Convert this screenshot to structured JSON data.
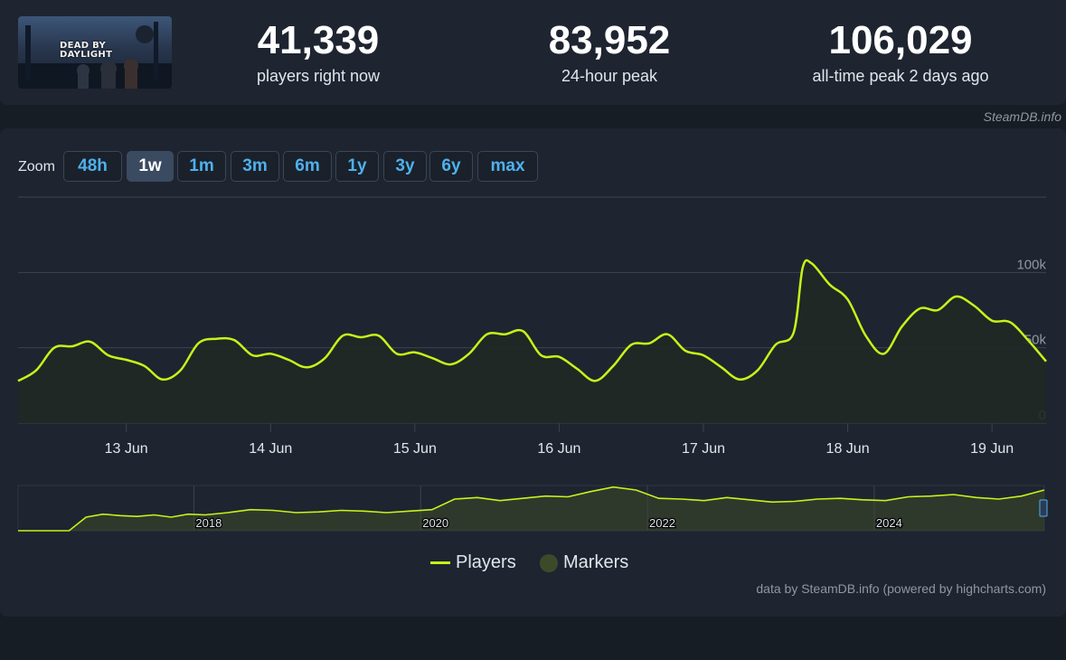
{
  "header": {
    "game_logo_text": "DEAD BY DAYLIGHT",
    "stats": [
      {
        "value": "41,339",
        "label": "players right now"
      },
      {
        "value": "83,952",
        "label": "24-hour peak"
      },
      {
        "value": "106,029",
        "label": "all-time peak 2 days ago"
      }
    ],
    "credit": "SteamDB.info"
  },
  "zoom": {
    "label": "Zoom",
    "buttons": [
      "48h",
      "1w",
      "1m",
      "3m",
      "6m",
      "1y",
      "3y",
      "6y",
      "max"
    ],
    "active": "1w"
  },
  "colors": {
    "line": "#c8f219",
    "area": "#1f2923",
    "grid": "#3a4350",
    "marker": "#3d4a2a",
    "accent": "#4fb0ee"
  },
  "chart_data": {
    "type": "area",
    "series": [
      {
        "name": "Players",
        "x": [
          "2024-06-12 06:00",
          "2024-06-12 09:00",
          "2024-06-12 12:00",
          "2024-06-12 15:00",
          "2024-06-12 18:00",
          "2024-06-12 21:00",
          "2024-06-13 00:00",
          "2024-06-13 03:00",
          "2024-06-13 06:00",
          "2024-06-13 09:00",
          "2024-06-13 12:00",
          "2024-06-13 15:00",
          "2024-06-13 18:00",
          "2024-06-13 21:00",
          "2024-06-14 00:00",
          "2024-06-14 03:00",
          "2024-06-14 06:00",
          "2024-06-14 09:00",
          "2024-06-14 12:00",
          "2024-06-14 15:00",
          "2024-06-14 18:00",
          "2024-06-14 21:00",
          "2024-06-15 00:00",
          "2024-06-15 03:00",
          "2024-06-15 06:00",
          "2024-06-15 09:00",
          "2024-06-15 12:00",
          "2024-06-15 15:00",
          "2024-06-15 18:00",
          "2024-06-15 21:00",
          "2024-06-16 00:00",
          "2024-06-16 03:00",
          "2024-06-16 06:00",
          "2024-06-16 09:00",
          "2024-06-16 12:00",
          "2024-06-16 15:00",
          "2024-06-16 18:00",
          "2024-06-16 21:00",
          "2024-06-17 00:00",
          "2024-06-17 03:00",
          "2024-06-17 06:00",
          "2024-06-17 09:00",
          "2024-06-17 12:00",
          "2024-06-17 15:00",
          "2024-06-17 16:30",
          "2024-06-17 18:00",
          "2024-06-17 21:00",
          "2024-06-18 00:00",
          "2024-06-18 03:00",
          "2024-06-18 06:00",
          "2024-06-18 09:00",
          "2024-06-18 12:00",
          "2024-06-18 15:00",
          "2024-06-18 18:00",
          "2024-06-18 21:00",
          "2024-06-19 00:00",
          "2024-06-19 03:00",
          "2024-06-19 06:00",
          "2024-06-19 09:00"
        ],
        "values": [
          28000,
          35000,
          50000,
          51000,
          54000,
          45000,
          42000,
          38000,
          29000,
          35000,
          53000,
          56000,
          55000,
          45000,
          46000,
          42000,
          37000,
          43000,
          58000,
          57000,
          58000,
          46000,
          47000,
          43000,
          39000,
          46000,
          59000,
          59000,
          61000,
          45000,
          44000,
          36000,
          28000,
          38000,
          52000,
          53000,
          59000,
          48000,
          45000,
          37000,
          29000,
          35000,
          52000,
          60000,
          103000,
          106000,
          92000,
          82000,
          58000,
          46000,
          64000,
          76000,
          75000,
          84000,
          78000,
          68000,
          67000,
          55000,
          41000
        ]
      }
    ],
    "x_ticks": [
      "13 Jun",
      "14 Jun",
      "15 Jun",
      "16 Jun",
      "17 Jun",
      "18 Jun",
      "19 Jun"
    ],
    "y_ticks": [
      "100k",
      "50k",
      "0"
    ],
    "ylim": [
      0,
      150000
    ],
    "grid": true,
    "legend": [
      "Players",
      "Markers"
    ],
    "legend_position": "bottom",
    "navigator": {
      "labels": [
        "2018",
        "2020",
        "2022",
        "2024"
      ],
      "x": [
        2016.45,
        2016.6,
        2016.75,
        2016.9,
        2017.05,
        2017.2,
        2017.35,
        2017.5,
        2017.65,
        2017.8,
        2017.95,
        2018.1,
        2018.3,
        2018.5,
        2018.7,
        2018.9,
        2019.1,
        2019.3,
        2019.5,
        2019.7,
        2019.9,
        2020.1,
        2020.3,
        2020.5,
        2020.7,
        2020.9,
        2021.1,
        2021.3,
        2021.5,
        2021.7,
        2021.9,
        2022.1,
        2022.3,
        2022.5,
        2022.7,
        2022.9,
        2023.1,
        2023.3,
        2023.5,
        2023.7,
        2023.9,
        2024.1,
        2024.3,
        2024.5,
        2024.7,
        2024.9,
        2025.1,
        2025.3,
        2025.5
      ],
      "values": [
        0,
        0,
        0,
        0,
        18000,
        22000,
        20000,
        19000,
        21000,
        18000,
        22000,
        21000,
        24000,
        28000,
        27000,
        24000,
        25000,
        27000,
        26000,
        24000,
        26000,
        28000,
        42000,
        44000,
        40000,
        43000,
        46000,
        45000,
        52000,
        58000,
        54000,
        43000,
        42000,
        40000,
        44000,
        41000,
        38000,
        39000,
        42000,
        43000,
        41000,
        40000,
        45000,
        46000,
        48000,
        44000,
        42000,
        46000,
        54000
      ]
    }
  },
  "footer": {
    "credit": "data by SteamDB.info (powered by highcharts.com)"
  }
}
